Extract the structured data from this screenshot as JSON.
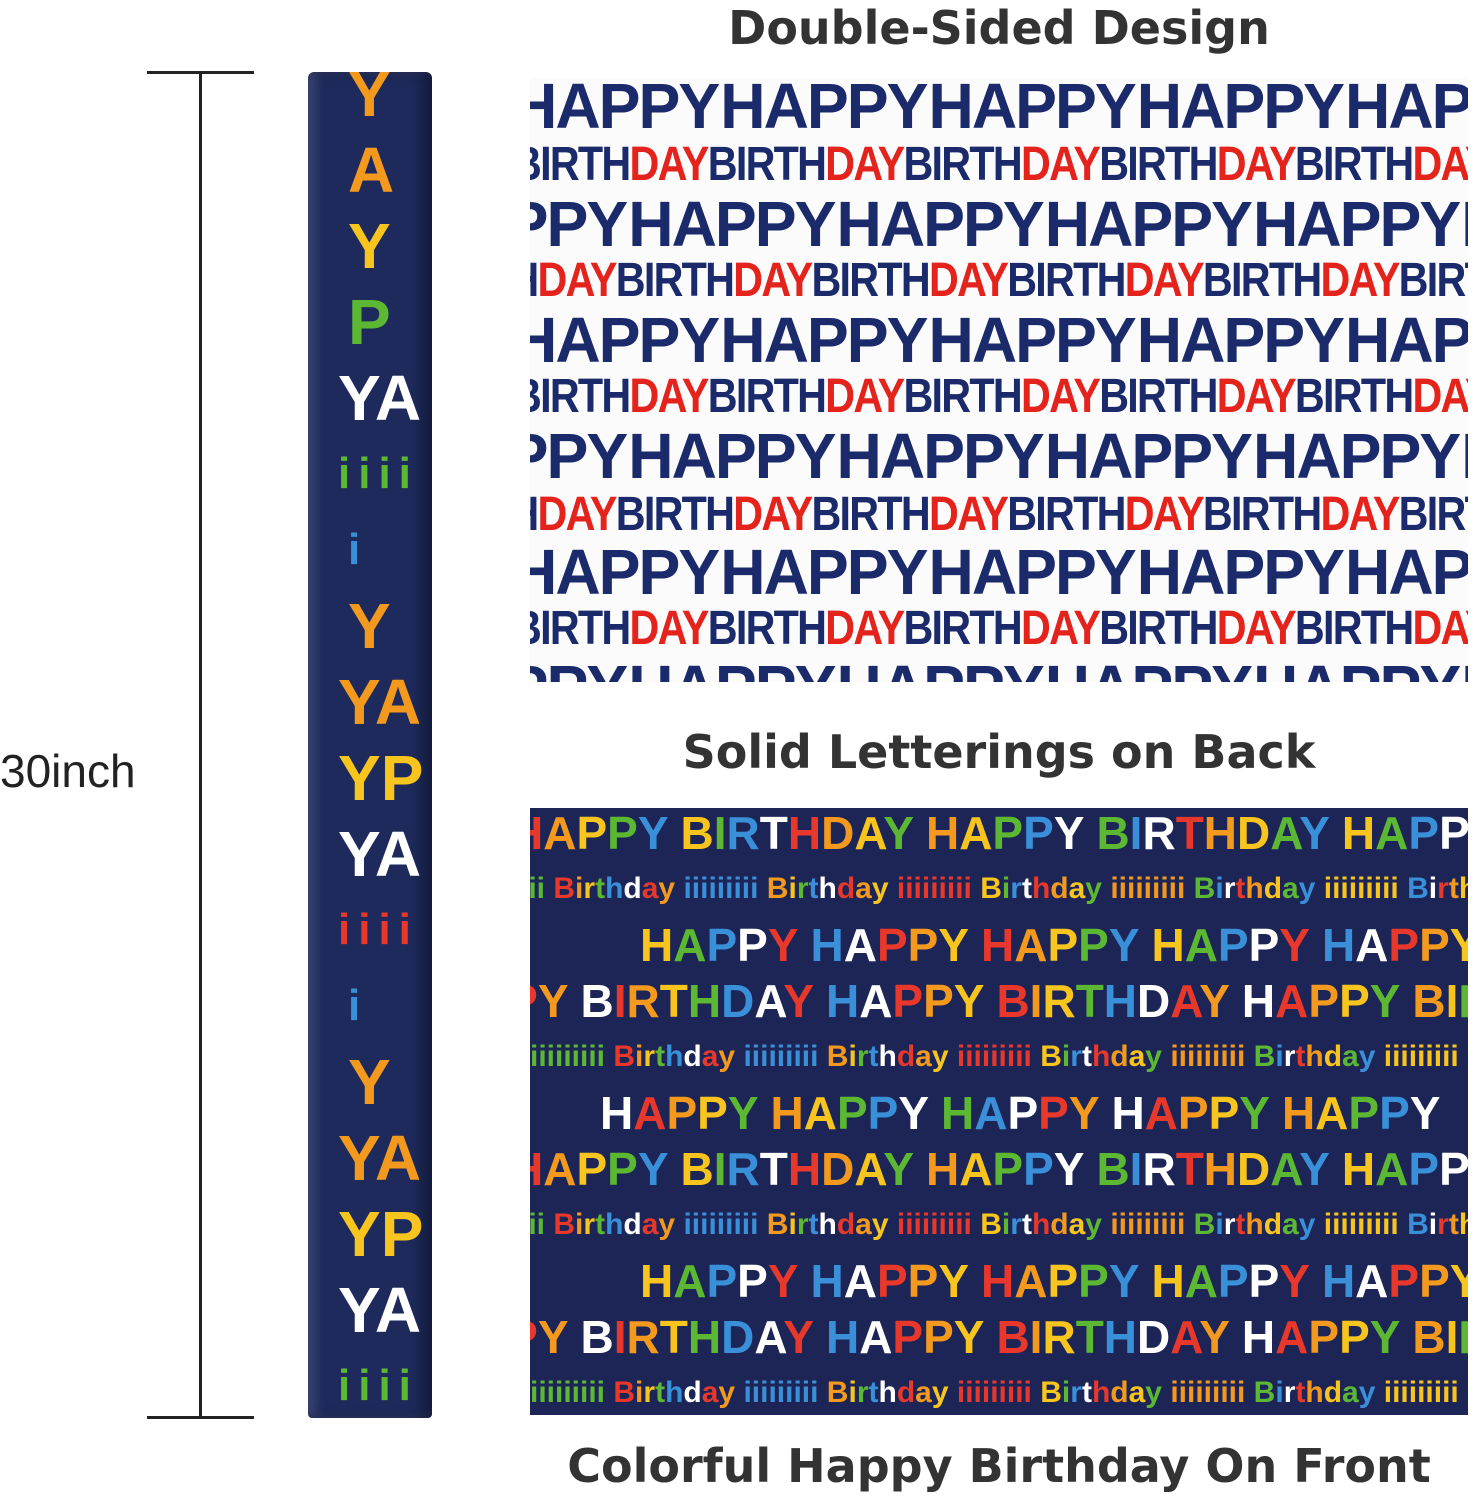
{
  "captions": {
    "top": "Double-Sided Design",
    "middle": "Solid Letterings on Back",
    "bottom": "Colorful Happy Birthday On Front"
  },
  "dimension": {
    "label": "30inch"
  },
  "pattern": {
    "word1": "HAPPY",
    "word2a": "BIRTH",
    "word2b": "DAY"
  },
  "colors": {
    "navy": "#1b2a6b",
    "red": "#e3231c",
    "background_back": "#fbfbfb",
    "background_front": "#1c2556",
    "palette": [
      "#e8382b",
      "#f39a1e",
      "#f7c51e",
      "#5cb833",
      "#3a8fd9",
      "#ffffff"
    ]
  }
}
